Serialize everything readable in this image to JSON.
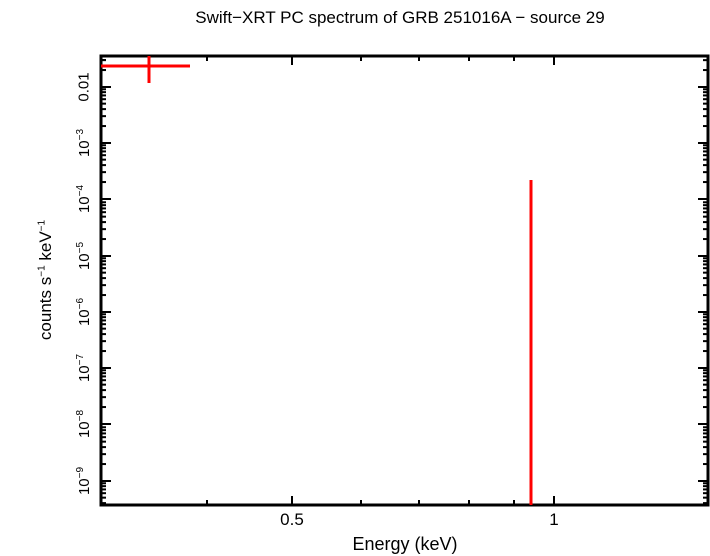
{
  "chart_data": {
    "type": "scatter",
    "title": "Swift−XRT PC spectrum of GRB 251016A − source 29",
    "xlabel": "Energy (keV)",
    "ylabel": "counts s⁻¹ keV⁻¹",
    "xscale": "log",
    "yscale": "log",
    "xlim": [
      0.3,
      1.5
    ],
    "ylim": [
      3.5e-10,
      0.03
    ],
    "xticks": [
      {
        "value": 0.5,
        "label": "0.5"
      },
      {
        "value": 1,
        "label": "1"
      }
    ],
    "yticks": [
      {
        "value": 0.01,
        "label": "0.01"
      },
      {
        "value": 0.001,
        "label": "10⁻³"
      },
      {
        "value": 0.0001,
        "label": "10⁻⁴"
      },
      {
        "value": 1e-05,
        "label": "10⁻⁵"
      },
      {
        "value": 1e-06,
        "label": "10⁻⁶"
      },
      {
        "value": 1e-07,
        "label": "10⁻⁷"
      },
      {
        "value": 1e-08,
        "label": "10⁻⁸"
      },
      {
        "value": 1e-09,
        "label": "10⁻⁹"
      }
    ],
    "grid": false,
    "legend": null,
    "series": [
      {
        "name": "data",
        "color": "#ff0000",
        "points": [
          {
            "x": 0.343,
            "xerr_low": 0.3,
            "xerr_high": 0.377,
            "y": 0.0236,
            "yerr_low": 0.012,
            "yerr_high": 0.035
          },
          {
            "x": 0.94,
            "xerr_low": 0.94,
            "xerr_high": 0.94,
            "y": 0.00022,
            "yerr_low": 3.5e-10,
            "yerr_high": 0.00022
          }
        ]
      }
    ]
  },
  "labels": {
    "title": "Swift−XRT PC spectrum of GRB 251016A − source 29",
    "xlabel": "Energy (keV)",
    "ylabel_main": "counts s",
    "ylabel_exp1": "−1",
    "ylabel_mid": " keV",
    "ylabel_exp2": "−1",
    "xtick_05": "0.5",
    "xtick_1": "1",
    "ytick_001": "0.01",
    "ytick_base": "10",
    "exp_3": "−3",
    "exp_4": "−4",
    "exp_5": "−5",
    "exp_6": "−6",
    "exp_7": "−7",
    "exp_8": "−8",
    "exp_9": "−9"
  }
}
